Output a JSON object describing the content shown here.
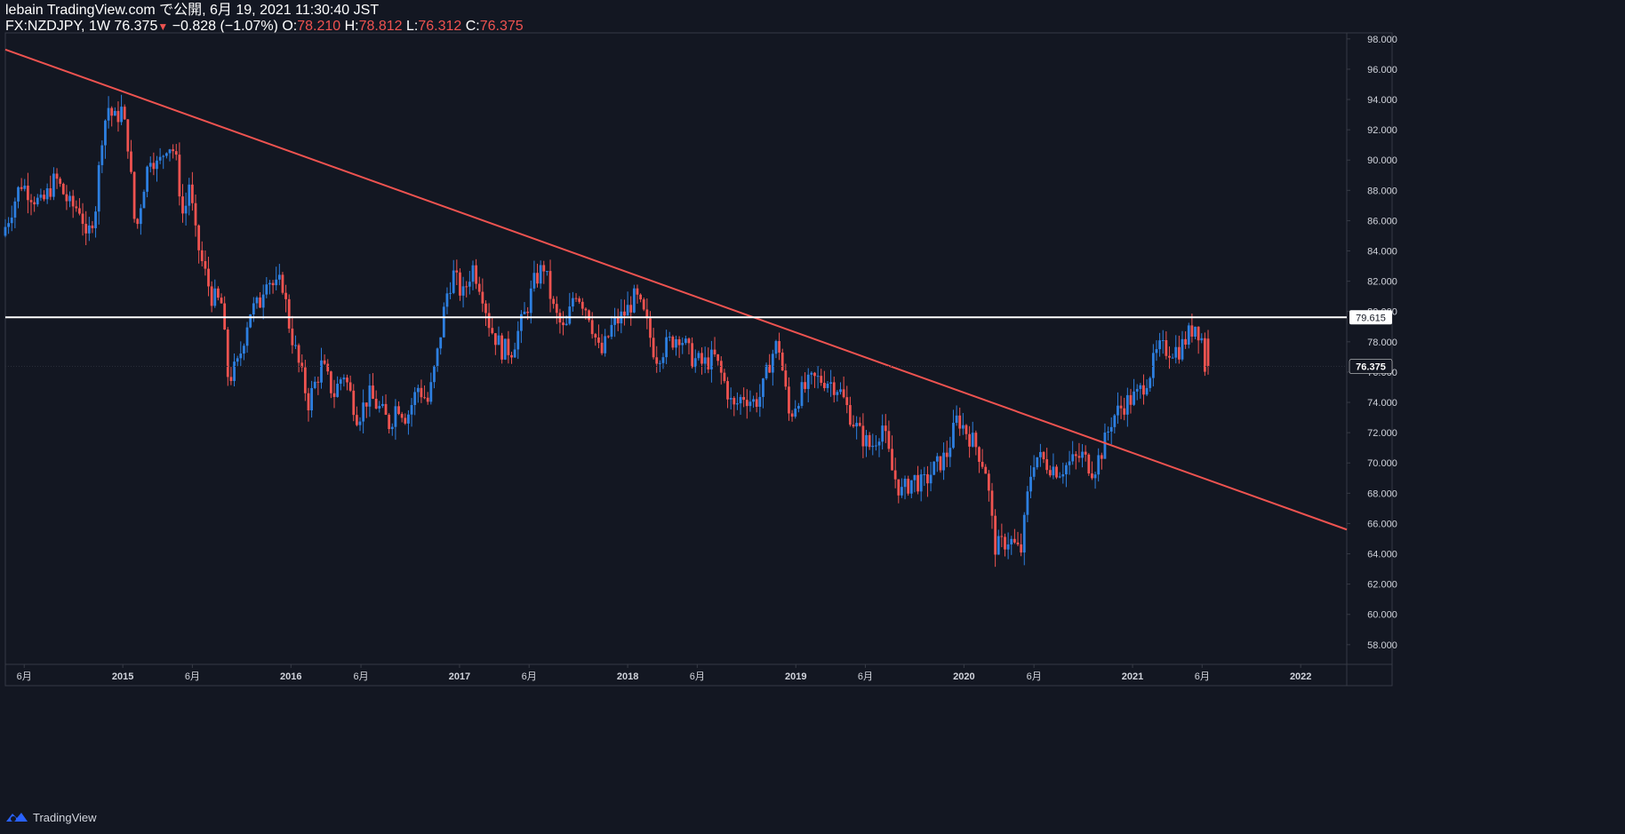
{
  "header": {
    "line1": "lebain TradingView.com で公開, 6月 19, 2021 11:30:40 JST",
    "symbol_interval": "FX:NZDJPY, 1W",
    "last": "76.375",
    "change": "−0.828 (−1.07%)",
    "o_label": "O:",
    "o_value": "78.210",
    "h_label": "H:",
    "h_value": "78.812",
    "l_label": "L:",
    "l_value": "76.312",
    "c_label": "C:",
    "c_value": "76.375"
  },
  "footer": {
    "brand": "TradingView"
  },
  "colors": {
    "background": "#131722",
    "up": "#2d7fe0",
    "down": "#ef5350",
    "trendline": "#ef5350",
    "hline": "#ffffff",
    "axis_text": "#d1d4dc"
  },
  "chart_data": {
    "type": "candlestick",
    "symbol": "FX:NZDJPY",
    "interval": "1W",
    "y_range": [
      56.7,
      98.4
    ],
    "y_ticks": [
      "98.000",
      "96.000",
      "94.000",
      "92.000",
      "90.000",
      "88.000",
      "86.000",
      "84.000",
      "82.000",
      "80.000",
      "78.000",
      "76.000",
      "74.000",
      "72.000",
      "70.000",
      "68.000",
      "66.000",
      "64.000",
      "62.000",
      "60.000",
      "58.000"
    ],
    "x_range": [
      "2014-04-21",
      "2022-04-11"
    ],
    "x_ticks": [
      {
        "label": "6月",
        "date": "2014-06-01"
      },
      {
        "label": "2015",
        "date": "2015-01-01"
      },
      {
        "label": "6月",
        "date": "2015-06-01"
      },
      {
        "label": "2016",
        "date": "2016-01-01"
      },
      {
        "label": "6月",
        "date": "2016-06-01"
      },
      {
        "label": "2017",
        "date": "2017-01-01"
      },
      {
        "label": "6月",
        "date": "2017-06-01"
      },
      {
        "label": "2018",
        "date": "2018-01-01"
      },
      {
        "label": "6月",
        "date": "2018-06-01"
      },
      {
        "label": "2019",
        "date": "2019-01-01"
      },
      {
        "label": "6月",
        "date": "2019-06-01"
      },
      {
        "label": "2020",
        "date": "2020-01-01"
      },
      {
        "label": "6月",
        "date": "2020-06-01"
      },
      {
        "label": "2021",
        "date": "2021-01-01"
      },
      {
        "label": "6月",
        "date": "2021-06-01"
      },
      {
        "label": "2022",
        "date": "2022-01-01"
      }
    ],
    "price_path": [
      [
        "2014-04-21",
        85.0
      ],
      [
        "2014-06-01",
        88.5
      ],
      [
        "2014-07-15",
        87.0
      ],
      [
        "2014-08-15",
        88.8
      ],
      [
        "2014-09-15",
        87.0
      ],
      [
        "2014-10-10",
        86.8
      ],
      [
        "2014-10-20",
        84.5
      ],
      [
        "2014-11-10",
        87.0
      ],
      [
        "2014-11-25",
        92.0
      ],
      [
        "2014-12-08",
        93.5
      ],
      [
        "2014-12-20",
        92.6
      ],
      [
        "2015-01-05",
        93.3
      ],
      [
        "2015-01-20",
        91.0
      ],
      [
        "2015-02-05",
        85.0
      ],
      [
        "2015-02-20",
        88.0
      ],
      [
        "2015-03-10",
        90.5
      ],
      [
        "2015-03-25",
        89.5
      ],
      [
        "2015-04-15",
        91.2
      ],
      [
        "2015-05-01",
        90.5
      ],
      [
        "2015-05-20",
        86.0
      ],
      [
        "2015-06-01",
        88.5
      ],
      [
        "2015-06-15",
        85.0
      ],
      [
        "2015-07-01",
        83.0
      ],
      [
        "2015-07-20",
        81.0
      ],
      [
        "2015-08-10",
        80.5
      ],
      [
        "2015-08-25",
        75.5
      ],
      [
        "2015-09-15",
        76.5
      ],
      [
        "2015-10-10",
        80.0
      ],
      [
        "2015-11-01",
        80.5
      ],
      [
        "2015-11-15",
        82.5
      ],
      [
        "2015-12-05",
        81.5
      ],
      [
        "2015-12-20",
        82.0
      ],
      [
        "2016-01-05",
        79.0
      ],
      [
        "2016-01-25",
        76.5
      ],
      [
        "2016-02-15",
        74.0
      ],
      [
        "2016-03-15",
        76.5
      ],
      [
        "2016-04-10",
        74.5
      ],
      [
        "2016-05-01",
        76.0
      ],
      [
        "2016-06-01",
        73.0
      ],
      [
        "2016-06-25",
        74.5
      ],
      [
        "2016-07-20",
        73.5
      ],
      [
        "2016-08-10",
        72.5
      ],
      [
        "2016-08-25",
        74.0
      ],
      [
        "2016-09-15",
        73.0
      ],
      [
        "2016-10-10",
        75.0
      ],
      [
        "2016-11-01",
        74.0
      ],
      [
        "2016-11-20",
        77.0
      ],
      [
        "2016-12-10",
        81.0
      ],
      [
        "2016-12-25",
        82.5
      ],
      [
        "2017-01-15",
        81.0
      ],
      [
        "2017-02-05",
        83.0
      ],
      [
        "2017-02-25",
        81.5
      ],
      [
        "2017-03-15",
        79.0
      ],
      [
        "2017-04-10",
        77.5
      ],
      [
        "2017-05-01",
        77.5
      ],
      [
        "2017-06-01",
        80.0
      ],
      [
        "2017-06-20",
        82.0
      ],
      [
        "2017-07-10",
        83.0
      ],
      [
        "2017-08-01",
        80.0
      ],
      [
        "2017-08-25",
        78.5
      ],
      [
        "2017-09-15",
        81.5
      ],
      [
        "2017-10-15",
        80.0
      ],
      [
        "2017-11-10",
        77.0
      ],
      [
        "2017-12-05",
        79.0
      ],
      [
        "2018-01-05",
        80.0
      ],
      [
        "2018-01-25",
        81.0
      ],
      [
        "2018-02-15",
        79.5
      ],
      [
        "2018-03-10",
        77.0
      ],
      [
        "2018-04-10",
        78.0
      ],
      [
        "2018-05-01",
        78.5
      ],
      [
        "2018-05-25",
        77.0
      ],
      [
        "2018-06-20",
        76.5
      ],
      [
        "2018-07-15",
        77.0
      ],
      [
        "2018-08-10",
        75.0
      ],
      [
        "2018-08-25",
        73.5
      ],
      [
        "2018-09-15",
        74.5
      ],
      [
        "2018-10-10",
        74.0
      ],
      [
        "2018-10-25",
        74.5
      ],
      [
        "2018-11-15",
        77.0
      ],
      [
        "2018-12-01",
        78.0
      ],
      [
        "2018-12-25",
        73.0
      ],
      [
        "2019-01-15",
        74.5
      ],
      [
        "2019-02-15",
        75.5
      ],
      [
        "2019-03-15",
        75.5
      ],
      [
        "2019-04-10",
        75.0
      ],
      [
        "2019-05-01",
        73.5
      ],
      [
        "2019-05-25",
        72.0
      ],
      [
        "2019-06-20",
        71.0
      ],
      [
        "2019-07-15",
        72.5
      ],
      [
        "2019-08-05",
        69.5
      ],
      [
        "2019-08-25",
        68.0
      ],
      [
        "2019-09-20",
        69.0
      ],
      [
        "2019-10-10",
        68.5
      ],
      [
        "2019-11-01",
        69.5
      ],
      [
        "2019-12-01",
        70.5
      ],
      [
        "2019-12-25",
        73.0
      ],
      [
        "2020-01-15",
        72.0
      ],
      [
        "2020-02-05",
        71.0
      ],
      [
        "2020-02-25",
        69.5
      ],
      [
        "2020-03-15",
        64.5
      ],
      [
        "2020-03-25",
        64.5
      ],
      [
        "2020-04-15",
        65.0
      ],
      [
        "2020-05-10",
        64.0
      ],
      [
        "2020-05-30",
        69.0
      ],
      [
        "2020-06-10",
        70.5
      ],
      [
        "2020-07-05",
        70.0
      ],
      [
        "2020-08-01",
        69.5
      ],
      [
        "2020-08-25",
        70.0
      ],
      [
        "2020-09-20",
        70.5
      ],
      [
        "2020-10-15",
        69.5
      ],
      [
        "2020-11-05",
        71.0
      ],
      [
        "2020-11-25",
        73.0
      ],
      [
        "2020-12-25",
        74.0
      ],
      [
        "2021-01-20",
        74.5
      ],
      [
        "2021-02-15",
        76.0
      ],
      [
        "2021-03-05",
        77.5
      ],
      [
        "2021-03-25",
        77.5
      ],
      [
        "2021-04-20",
        77.5
      ],
      [
        "2021-05-10",
        78.5
      ],
      [
        "2021-05-25",
        79.2
      ],
      [
        "2021-06-07",
        78.21
      ],
      [
        "2021-06-14",
        76.375
      ]
    ],
    "trendline": {
      "points": [
        [
          "2014-04-21",
          97.3
        ],
        [
          "2022-04-11",
          65.6
        ]
      ]
    },
    "horizontal_line": {
      "value": 79.615,
      "label": "79.615"
    },
    "last_price_label": "76.375"
  }
}
